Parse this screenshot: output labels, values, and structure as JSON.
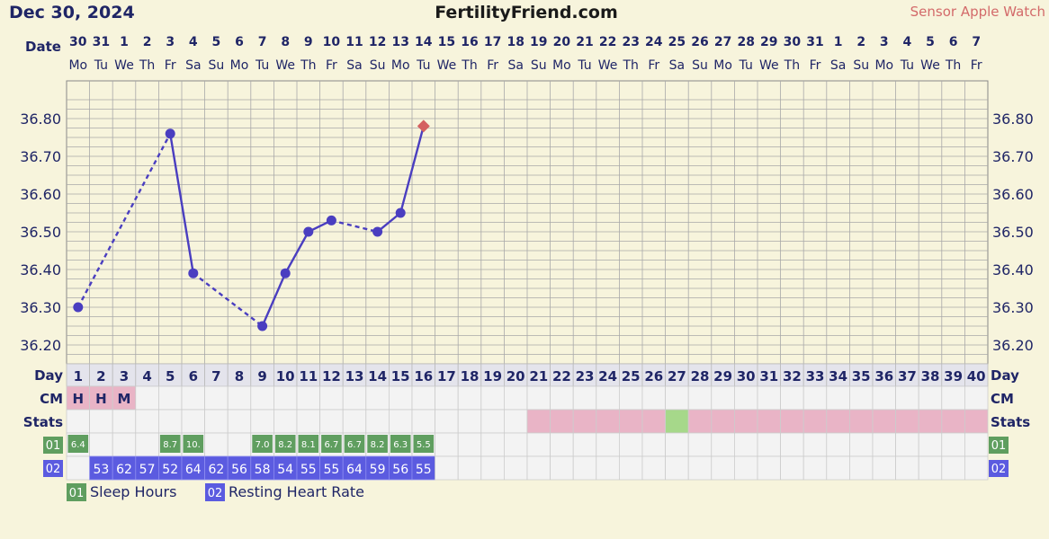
{
  "header": {
    "date": "Dec 30, 2024",
    "site": "FertilityFriend.com",
    "sensor": "Sensor Apple Watch"
  },
  "labels": {
    "date": "Date",
    "day": "Day",
    "cm": "CM",
    "stats": "Stats",
    "sleep_badge": "01",
    "rhr_badge": "02"
  },
  "legend": [
    {
      "badge": "01",
      "label": "Sleep Hours",
      "color": "#5f9e5f"
    },
    {
      "badge": "02",
      "label": "Resting Heart Rate",
      "color": "#5b5be0"
    }
  ],
  "colors": {
    "line": "#4a3ec0",
    "marker_last": "#d46060",
    "cm": "#e9b4c6",
    "stats_pink": "#e9b4c6",
    "stats_green": "#a6d88a",
    "sleep": "#5f9e5f",
    "rhr": "#5b5be0",
    "grid": "#a9a9a9",
    "chart_bg": "#f7f4dc"
  },
  "chart_data": {
    "type": "line",
    "ylim": [
      36.15,
      36.9
    ],
    "y_ticks": [
      "36.80",
      "36.70",
      "36.60",
      "36.50",
      "36.40",
      "36.30",
      "36.20"
    ],
    "y_tick_values": [
      36.8,
      36.7,
      36.6,
      36.5,
      36.4,
      36.3,
      36.2
    ],
    "dates": [
      "30",
      "31",
      "1",
      "2",
      "3",
      "4",
      "5",
      "6",
      "7",
      "8",
      "9",
      "10",
      "11",
      "12",
      "13",
      "14",
      "15",
      "16",
      "17",
      "18",
      "19",
      "20",
      "21",
      "22",
      "23",
      "24",
      "25",
      "26",
      "27",
      "28",
      "29",
      "30",
      "31",
      "1",
      "2",
      "3",
      "4",
      "5",
      "6",
      "7"
    ],
    "weekdays": [
      "Mo",
      "Tu",
      "We",
      "Th",
      "Fr",
      "Sa",
      "Su",
      "Mo",
      "Tu",
      "We",
      "Th",
      "Fr",
      "Sa",
      "Su",
      "Mo",
      "Tu",
      "We",
      "Th",
      "Fr",
      "Sa",
      "Su",
      "Mo",
      "Tu",
      "We",
      "Th",
      "Fr",
      "Sa",
      "Su",
      "Mo",
      "Tu",
      "We",
      "Th",
      "Fr",
      "Sa",
      "Su",
      "Mo",
      "Tu",
      "We",
      "Th",
      "Fr"
    ],
    "days": [
      "1",
      "2",
      "3",
      "4",
      "5",
      "6",
      "7",
      "8",
      "9",
      "10",
      "11",
      "12",
      "13",
      "14",
      "15",
      "16",
      "17",
      "18",
      "19",
      "20",
      "21",
      "22",
      "23",
      "24",
      "25",
      "26",
      "27",
      "28",
      "29",
      "30",
      "31",
      "32",
      "33",
      "34",
      "35",
      "36",
      "37",
      "38",
      "39",
      "40"
    ],
    "temps": [
      {
        "day": 1,
        "value": 36.3
      },
      {
        "day": 5,
        "value": 36.76
      },
      {
        "day": 6,
        "value": 36.39
      },
      {
        "day": 9,
        "value": 36.25
      },
      {
        "day": 10,
        "value": 36.39
      },
      {
        "day": 11,
        "value": 36.5
      },
      {
        "day": 12,
        "value": 36.53
      },
      {
        "day": 14,
        "value": 36.5
      },
      {
        "day": 15,
        "value": 36.55
      },
      {
        "day": 16,
        "value": 36.78,
        "marker": "diamond"
      }
    ],
    "dashed_segments": [
      [
        1,
        5
      ],
      [
        6,
        9
      ],
      [
        12,
        14
      ]
    ],
    "cm": [
      {
        "day": 1,
        "value": "H"
      },
      {
        "day": 2,
        "value": "H"
      },
      {
        "day": 3,
        "value": "M"
      }
    ],
    "stats": {
      "pink_from": 21,
      "pink_to": 40,
      "green_day": 27
    },
    "sleep_hours": [
      {
        "day": 1,
        "value": "6.4"
      },
      {
        "day": 5,
        "value": "8.7"
      },
      {
        "day": 6,
        "value": "10."
      },
      {
        "day": 9,
        "value": "7.0"
      },
      {
        "day": 10,
        "value": "8.2"
      },
      {
        "day": 11,
        "value": "8.1"
      },
      {
        "day": 12,
        "value": "6.7"
      },
      {
        "day": 13,
        "value": "6.7"
      },
      {
        "day": 14,
        "value": "8.2"
      },
      {
        "day": 15,
        "value": "6.3"
      },
      {
        "day": 16,
        "value": "5.5"
      }
    ],
    "resting_heart_rate": [
      {
        "day": 2,
        "value": "53"
      },
      {
        "day": 3,
        "value": "62"
      },
      {
        "day": 4,
        "value": "57"
      },
      {
        "day": 5,
        "value": "52"
      },
      {
        "day": 6,
        "value": "64"
      },
      {
        "day": 7,
        "value": "62"
      },
      {
        "day": 8,
        "value": "56"
      },
      {
        "day": 9,
        "value": "58"
      },
      {
        "day": 10,
        "value": "54"
      },
      {
        "day": 11,
        "value": "55"
      },
      {
        "day": 12,
        "value": "55"
      },
      {
        "day": 13,
        "value": "64"
      },
      {
        "day": 14,
        "value": "59"
      },
      {
        "day": 15,
        "value": "56"
      },
      {
        "day": 16,
        "value": "55"
      }
    ]
  }
}
